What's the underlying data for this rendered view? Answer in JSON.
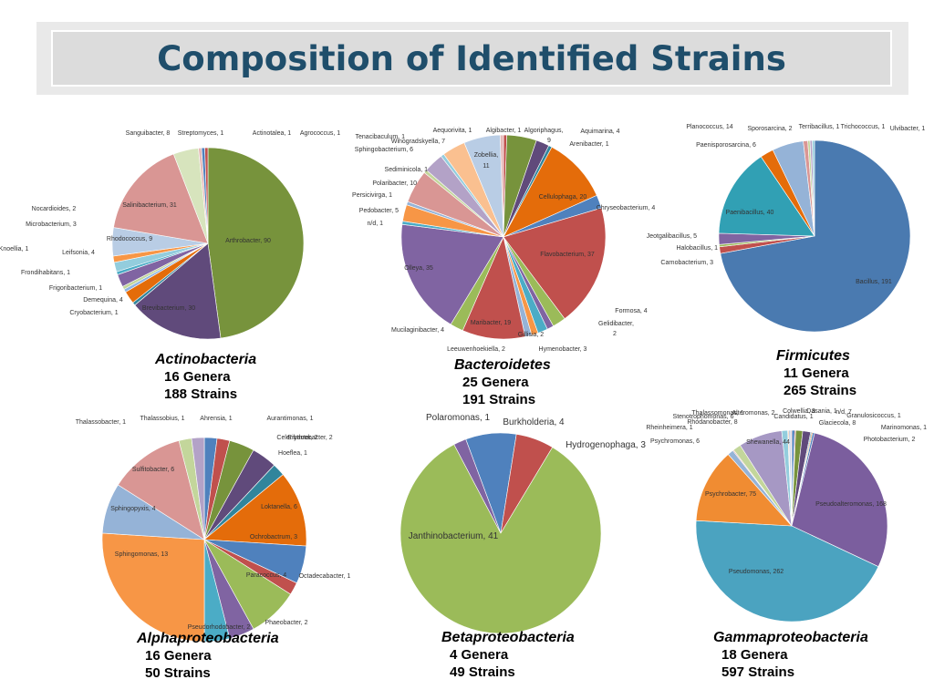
{
  "title": "Composition of Identified Strains",
  "chart_data": [
    {
      "type": "pie",
      "name": "Actinobacteria",
      "genera_text": "16 Genera",
      "strains_text": "188 Strains",
      "slices": [
        {
          "label": "Arthrobacter",
          "value": 90,
          "color": "#77933c"
        },
        {
          "label": "Brevibacterium",
          "value": 30,
          "color": "#604a7b"
        },
        {
          "label": "Cryobacterium",
          "value": 1,
          "color": "#31859c"
        },
        {
          "label": "Demequina",
          "value": 4,
          "color": "#e46c0a"
        },
        {
          "label": "Frigoribacterium",
          "value": 1,
          "color": "#8eb4e3"
        },
        {
          "label": "Frondihabitans",
          "value": 1,
          "color": "#c3d69b"
        },
        {
          "label": "Leifsonia",
          "value": 4,
          "color": "#8064a2"
        },
        {
          "label": "Knoellia",
          "value": 1,
          "color": "#4bacc6"
        },
        {
          "label": "Microbacterium",
          "value": 3,
          "color": "#93cddd"
        },
        {
          "label": "Nocardioides",
          "value": 2,
          "color": "#f79646"
        },
        {
          "label": "Rhodococcus",
          "value": 9,
          "color": "#b9cde5"
        },
        {
          "label": "Salinibacterium",
          "value": 31,
          "color": "#d99694"
        },
        {
          "label": "Sanguibacter",
          "value": 8,
          "color": "#d7e4bd"
        },
        {
          "label": "Streptomyces",
          "value": 1,
          "color": "#e6b9b8"
        },
        {
          "label": "Actinotalea",
          "value": 1,
          "color": "#4f81bd"
        },
        {
          "label": "Agrococcus",
          "value": 1,
          "color": "#c0504d"
        }
      ]
    },
    {
      "type": "pie",
      "name": "Bacteroidetes",
      "genera_text": "25 Genera",
      "strains_text": "191 Strains",
      "slices": [
        {
          "label": "Algibacter",
          "value": 1,
          "color": "#c0504d"
        },
        {
          "label": "Algoriphagus",
          "value": 9,
          "color": "#77933c"
        },
        {
          "label": "Aquimarina",
          "value": 4,
          "color": "#604a7b"
        },
        {
          "label": "Arenibacter",
          "value": 1,
          "color": "#31859c"
        },
        {
          "label": "Cellulophaga",
          "value": 20,
          "color": "#e46c0a"
        },
        {
          "label": "Chryseobacterium",
          "value": 4,
          "color": "#4f81bd"
        },
        {
          "label": "Flavobacterium",
          "value": 37,
          "color": "#c0504d"
        },
        {
          "label": "Formosa",
          "value": 4,
          "color": "#9bbb59"
        },
        {
          "label": "Gelidibacter",
          "value": 2,
          "color": "#8064a2"
        },
        {
          "label": "Hymenobacter",
          "value": 3,
          "color": "#4bacc6"
        },
        {
          "label": "Gillisia",
          "value": 2,
          "color": "#f79646"
        },
        {
          "label": "Leeuwenhoekiella",
          "value": 2,
          "color": "#95b3d7"
        },
        {
          "label": "Maribacter",
          "value": 19,
          "color": "#c0504d"
        },
        {
          "label": "Mucilaginibacter",
          "value": 4,
          "color": "#9bbb59"
        },
        {
          "label": "Olleya",
          "value": 35,
          "color": "#8064a2"
        },
        {
          "label": "n/d",
          "value": 1,
          "color": "#4bacc6"
        },
        {
          "label": "Pedobacter",
          "value": 5,
          "color": "#f79646"
        },
        {
          "label": "Persicivirga",
          "value": 1,
          "color": "#95b3d7"
        },
        {
          "label": "Polaribacter",
          "value": 10,
          "color": "#d99694"
        },
        {
          "label": "Sediminicola",
          "value": 1,
          "color": "#c3d69b"
        },
        {
          "label": "Sphingobacterium",
          "value": 6,
          "color": "#b3a2c7"
        },
        {
          "label": "Tenacibaculum",
          "value": 1,
          "color": "#93cddd"
        },
        {
          "label": "Winogradskyella",
          "value": 7,
          "color": "#fac090"
        },
        {
          "label": "Zobellia",
          "value": 11,
          "color": "#b9cde5"
        },
        {
          "label": "Aequorivita",
          "value": 1,
          "color": "#e6b9b8"
        }
      ],
      "label_texts": [
        "Aequorivita, 1",
        "Algibacter, 1",
        "Algoriphagus,",
        "9",
        "Aquimarina, 4",
        "Arenibacter, 1",
        "Zobellia,",
        "11",
        "Winogradskyella, 7",
        "Tenacibaculum, 1",
        "Sphingobacterium, 6",
        "Sediminicola, 1",
        "Polaribacter, 10",
        "Persicivirga, 1",
        "Pedobacter, 5",
        "n/d, 1",
        "Cellulophaga, 20",
        "Chryseobacterium, 4",
        "Flavobacterium, 37",
        "Olleya, 35",
        "Maribacter, 19",
        "Mucilaginibacter, 4",
        "Formosa, 4",
        "Gelidibacter,",
        "2",
        "Hymenobacter, 3",
        "Gillisia, 2",
        "Leeuwenhoekiella, 2"
      ]
    },
    {
      "type": "pie",
      "name": "Firmicutes",
      "genera_text": "11 Genera",
      "strains_text": "265 Strains",
      "slices": [
        {
          "label": "Bacillus",
          "value": 191,
          "color": "#4a7ab0"
        },
        {
          "label": "Carnobacterium",
          "value": 3,
          "color": "#c0504d"
        },
        {
          "label": "Halobacillus",
          "value": 1,
          "color": "#9bbb59"
        },
        {
          "label": "Jeotgalibacillus",
          "value": 5,
          "color": "#8064a2"
        },
        {
          "label": "Paenibacillus",
          "value": 40,
          "color": "#31a0b4"
        },
        {
          "label": "Paenisporosarcina",
          "value": 6,
          "color": "#e46c0a"
        },
        {
          "label": "Planococcus",
          "value": 14,
          "color": "#95b3d7"
        },
        {
          "label": "Sporosarcina",
          "value": 2,
          "color": "#d99694"
        },
        {
          "label": "Terribacillus",
          "value": 1,
          "color": "#c3d69b"
        },
        {
          "label": "Trichococcus",
          "value": 1,
          "color": "#b3a2c7"
        },
        {
          "label": "Ulvibacter",
          "value": 1,
          "color": "#93cddd"
        }
      ],
      "label_texts": [
        "Planococcus, 14",
        "Sporosarcina, 2",
        "Terribacillus, 1",
        "Trichococcus, 1",
        "Ulvibacter, 1",
        "Paenisporosarcina, 6",
        "Paenibacillus, 40",
        "Jeotgalibacillus, 5",
        "Halobacillus, 1",
        "Carnobacterium, 3",
        "Bacillus, 191"
      ]
    },
    {
      "type": "pie",
      "name": "Alphaproteobacteria",
      "genera_text": "16 Genera",
      "strains_text": "50 Strains",
      "slices": [
        {
          "label": "Ahrensia",
          "value": 1,
          "color": "#4f81bd"
        },
        {
          "label": "Aurantimonas",
          "value": 1,
          "color": "#c0504d"
        },
        {
          "label": "Celeribacter",
          "value": 2,
          "color": "#77933c"
        },
        {
          "label": "Erythrobacter",
          "value": 2,
          "color": "#604a7b"
        },
        {
          "label": "Hoeflea",
          "value": 1,
          "color": "#31859c"
        },
        {
          "label": "Loktanella",
          "value": 6,
          "color": "#e46c0a"
        },
        {
          "label": "Ochrobactrum",
          "value": 3,
          "color": "#4f81bd"
        },
        {
          "label": "Octadecabacter",
          "value": 1,
          "color": "#c0504d"
        },
        {
          "label": "Paracoccus",
          "value": 4,
          "color": "#9bbb59"
        },
        {
          "label": "Phaeobacter",
          "value": 2,
          "color": "#8064a2"
        },
        {
          "label": "Pseudorhodobacter",
          "value": 2,
          "color": "#4bacc6"
        },
        {
          "label": "Sphingomonas",
          "value": 13,
          "color": "#f79646"
        },
        {
          "label": "Sphingopyxis",
          "value": 4,
          "color": "#95b3d7"
        },
        {
          "label": "Sulfitobacter",
          "value": 6,
          "color": "#d99694"
        },
        {
          "label": "Thalassobacter",
          "value": 1,
          "color": "#c3d69b"
        },
        {
          "label": "Thalassobius",
          "value": 1,
          "color": "#b3a2c7"
        }
      ],
      "label_texts": [
        "Thalassobacter, 1",
        "Thalassobius, 1",
        "Ahrensia, 1",
        "Aurantimonas, 1",
        "Celeribacter, 2",
        "Erythrobacter, 2",
        "Hoeflea, 1",
        "Sulfitobacter, 6",
        "Loktanella, 6",
        "Sphingopyxis, 4",
        "Ochrobactrum, 3",
        "Sphingomonas, 13",
        "Octadecabacter, 1",
        "Paracoccus, 4",
        "Phaeobacter, 2",
        "Pseudorhodobacter, 2"
      ]
    },
    {
      "type": "pie",
      "name": "Betaproteobacteria",
      "genera_text": "4 Genera",
      "strains_text": "49 Strains",
      "slices": [
        {
          "label": "Burkholderia",
          "value": 4,
          "color": "#4f81bd"
        },
        {
          "label": "Hydrogenophaga",
          "value": 3,
          "color": "#c0504d"
        },
        {
          "label": "Janthinobacterium",
          "value": 41,
          "color": "#9bbb59"
        },
        {
          "label": "Polaromonas",
          "value": 1,
          "color": "#8064a2"
        }
      ],
      "label_texts": [
        "Polaromonas, 1",
        "Burkholderia, 4",
        "Hydrogenophaga, 3",
        "Janthinobacterium, 41"
      ]
    },
    {
      "type": "pie",
      "name": "Gammaproteobacteria",
      "genera_text": "18 Genera",
      "strains_text": "597 Strains",
      "slices": [
        {
          "label": "Colwellia",
          "value": 3,
          "color": "#4f81bd"
        },
        {
          "label": "Dasania",
          "value": 1,
          "color": "#c0504d"
        },
        {
          "label": "n/d",
          "value": 7,
          "color": "#77933c"
        },
        {
          "label": "Glaciecola",
          "value": 8,
          "color": "#604a7b"
        },
        {
          "label": "Granulosicoccus",
          "value": 1,
          "color": "#31859c"
        },
        {
          "label": "Marinomonas",
          "value": 1,
          "color": "#e46c0a"
        },
        {
          "label": "Photobacterium",
          "value": 2,
          "color": "#4f81bd"
        },
        {
          "label": "Pseudoalteromonas",
          "value": 168,
          "color": "#7b5e9e"
        },
        {
          "label": "Pseudomonas",
          "value": 262,
          "color": "#4ba3c0"
        },
        {
          "label": "Psychrobacter",
          "value": 75,
          "color": "#f08c32"
        },
        {
          "label": "Psychromonas",
          "value": 6,
          "color": "#95b3d7"
        },
        {
          "label": "Rheinheimera",
          "value": 1,
          "color": "#d99694"
        },
        {
          "label": "Rhodanobacter",
          "value": 8,
          "color": "#c3d69b"
        },
        {
          "label": "Shewanella",
          "value": 44,
          "color": "#a698c4"
        },
        {
          "label": "Stenotrophomonas",
          "value": 6,
          "color": "#93cddd"
        },
        {
          "label": "Thalassomonas",
          "value": 1,
          "color": "#fac090"
        },
        {
          "label": "Alteromonas",
          "value": 2,
          "color": "#b9cde5"
        },
        {
          "label": "Candidatus",
          "value": 1,
          "color": "#e6b9b8"
        }
      ],
      "label_texts": [
        "Thalassomonas, 1",
        "Alteromonas, 2",
        "Colwellia, 3",
        "Dasania, 1",
        "n/d, 7",
        "Stenotrophomonas, 6",
        "Candidatus, 1",
        "Granulosicoccus, 1",
        "Rhodanobacter, 8",
        "Glaciecola, 8",
        "Rheinheimera, 1",
        "Marinomonas, 1",
        "Psychromonas, 6",
        "Photobacterium, 2",
        "Shewanella, 44",
        "Psychrobacter, 75",
        "Pseudoalteromonas, 168",
        "Pseudomonas, 262"
      ]
    }
  ]
}
